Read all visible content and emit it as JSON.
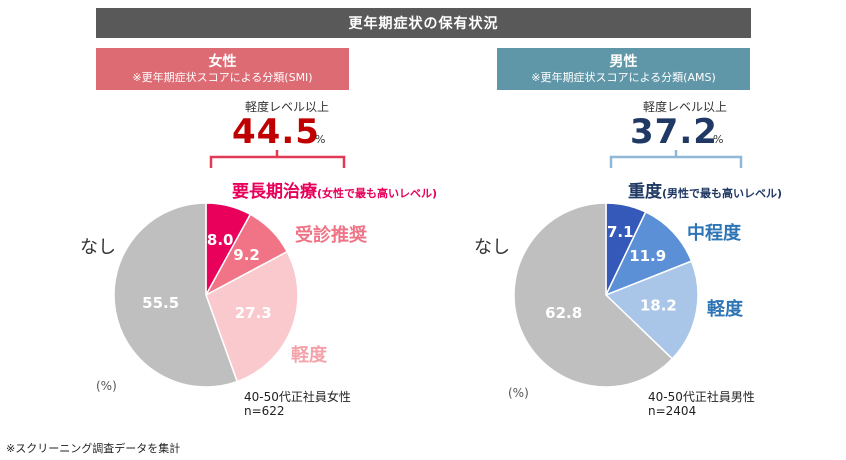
{
  "title": "更年期症状の保有状況",
  "female": {
    "header_title": "女性",
    "header_sub": "※更年期症状スコアによる分類(SMI)",
    "mild_or_more_label": "軽度レベル以上",
    "mild_or_more_value": "44.5",
    "percent_sign": "%",
    "top_category": "要長期治療",
    "top_category_note": "(女性で最も高いレベル)",
    "side_labels": {
      "mid": "受診推奨",
      "mild": "軽度",
      "none": "なし"
    },
    "unit_label": "(%)",
    "sample_line1": "40-50代正社員女性",
    "sample_line2": "n=622"
  },
  "male": {
    "header_title": "男性",
    "header_sub": "※更年期症状スコアによる分類(AMS)",
    "mild_or_more_label": "軽度レベル以上",
    "mild_or_more_value": "37.2",
    "percent_sign": "%",
    "top_category": "重度",
    "top_category_note": "(男性で最も高いレベル)",
    "side_labels": {
      "mid": "中程度",
      "mild": "軽度",
      "none": "なし"
    },
    "unit_label": "(%)",
    "sample_line1": "40-50代正社員男性",
    "sample_line2": "n=2404"
  },
  "footnote": "※スクリーニング調査データを集計",
  "colors": {
    "title_bar": "#595959",
    "female_header": "#dd6b73",
    "male_header": "#5f97a8",
    "female_accent": "#c00000",
    "male_accent": "#1f3864"
  },
  "chart_data": [
    {
      "type": "pie",
      "start": "12 o'clock, clockwise",
      "categories": [
        "要長期治療",
        "受診推奨",
        "軽度",
        "なし"
      ],
      "values": [
        8.0,
        9.2,
        27.3,
        55.5
      ],
      "labels": [
        "8.0",
        "9.2",
        "27.3",
        "55.5"
      ],
      "colors": [
        "#e8005a",
        "#f07486",
        "#f9c9cd",
        "#bfbfbf"
      ]
    },
    {
      "type": "pie",
      "start": "12 o'clock, clockwise",
      "categories": [
        "重度",
        "中程度",
        "軽度",
        "なし"
      ],
      "values": [
        7.1,
        11.9,
        18.2,
        62.8
      ],
      "labels": [
        "7.1",
        "11.9",
        "18.2",
        "62.8"
      ],
      "colors": [
        "#3559b8",
        "#5b8fd6",
        "#a9c6e8",
        "#bfbfbf"
      ]
    }
  ]
}
